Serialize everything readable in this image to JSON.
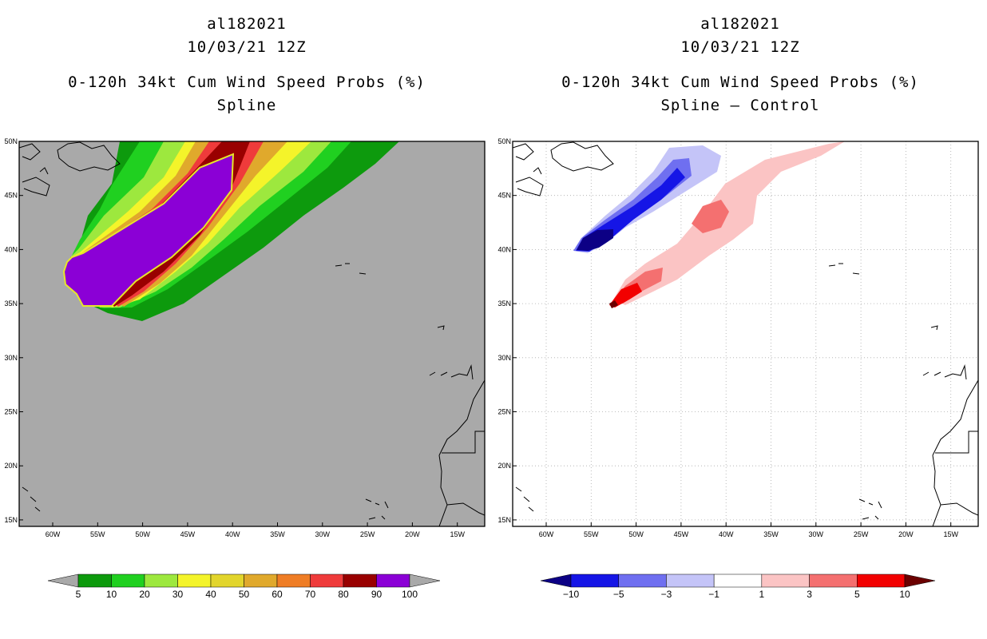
{
  "left_panel": {
    "storm_id": "al182021",
    "datetime": "10/03/21 12Z",
    "product": "0-120h 34kt Cum Wind Speed Probs (%)",
    "subtitle": "Spline",
    "background_color": "#a9a9a9",
    "colorbar": {
      "under_color": "#a9a9a9",
      "over_color": "#a9a9a9",
      "colors": [
        "#0d9a0d",
        "#20d020",
        "#9de83e",
        "#f4f42a",
        "#e2d52c",
        "#e0a92c",
        "#ef7d25",
        "#ef3b3b",
        "#990000",
        "#8b00d6"
      ],
      "labels": [
        "5",
        "10",
        "20",
        "30",
        "40",
        "50",
        "60",
        "70",
        "80",
        "90",
        "100"
      ]
    }
  },
  "right_panel": {
    "storm_id": "al182021",
    "datetime": "10/03/21 12Z",
    "product": "0-120h 34kt Cum Wind Speed Probs (%)",
    "subtitle": "Spline – Control",
    "background_color": "#ffffff",
    "colorbar": {
      "under_color": "#0c0085",
      "over_color": "#6b0000",
      "colors": [
        "#1515e6",
        "#6f6ff0",
        "#c4c4f8",
        "#ffffff",
        "#fbc4c4",
        "#f47070",
        "#f20000"
      ],
      "labels": [
        "−10",
        "−5",
        "−3",
        "−1",
        "1",
        "3",
        "5",
        "10"
      ]
    }
  },
  "map": {
    "lat_labels": [
      "50N",
      "45N",
      "40N",
      "35N",
      "30N",
      "25N",
      "20N",
      "15N"
    ],
    "lon_labels": [
      "60W",
      "55W",
      "50W",
      "45W",
      "40W",
      "35W",
      "30W",
      "25W",
      "20W",
      "15W"
    ]
  }
}
